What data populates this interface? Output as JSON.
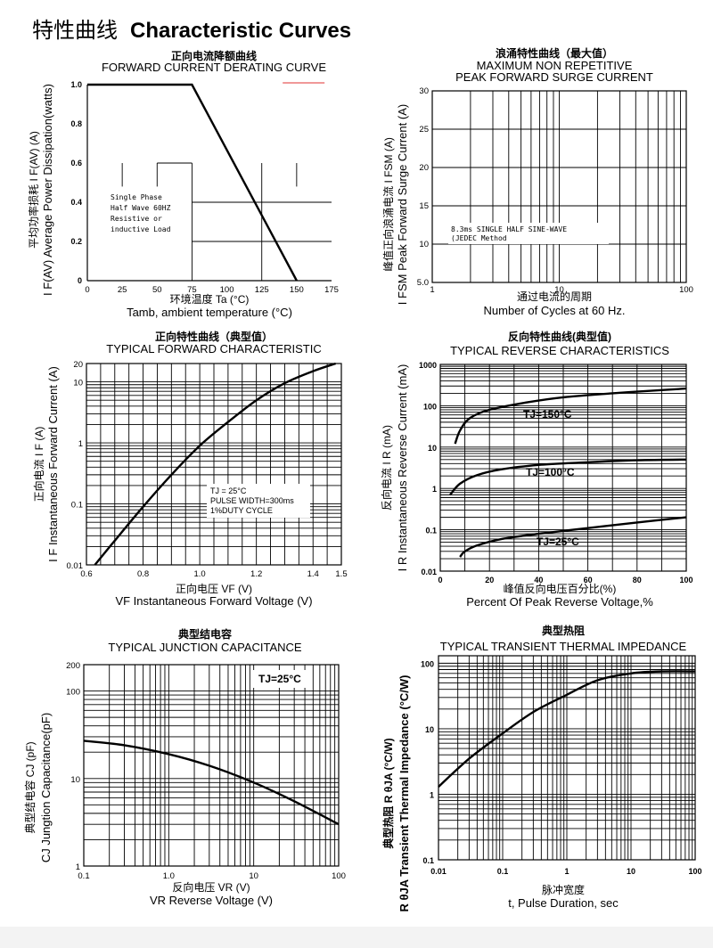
{
  "page": {
    "title_cn": "特性曲线",
    "title_en": "Characteristic Curves"
  },
  "chart_data": [
    {
      "id": "derating",
      "type": "line",
      "title_cn": "正向电流降额曲线",
      "title": "FORWARD CURRENT DERATING CURVE",
      "ylabel": "I F(AV)  Average Power Dissipation(watts)",
      "ylabel_cn": "平均功率损耗  I F(AV)  (A)",
      "xlabel_cn": "环境温度  Ta (°C)",
      "xlabel": "Tamb, ambient temperature (°C)",
      "x_ticks": [
        "0",
        "25",
        "50",
        "75",
        "100",
        "125",
        "150",
        "175"
      ],
      "y_ticks": [
        "0",
        "0.2",
        "0.4",
        "0.6",
        "0.8",
        "1.0"
      ],
      "xlim": [
        0,
        175
      ],
      "ylim": [
        0,
        1.0
      ],
      "series": [
        {
          "name": "derating",
          "x": [
            0,
            75,
            150
          ],
          "y": [
            1.0,
            1.0,
            0
          ]
        }
      ],
      "annotation": [
        "Single Phase",
        "Half Wave 60HZ",
        "Resistive or",
        "inductive Load"
      ]
    },
    {
      "id": "surge",
      "type": "line",
      "title_cn": "浪涌特性曲线（最大值）",
      "title": "MAXIMUM NON REPETITIVE",
      "title2": "PEAK FORWARD SURGE CURRENT",
      "ylabel": "I FSM  Peak Forward Surge Current (A)",
      "ylabel_cn": "峰值正向浪涌电流  I FSM  (A)",
      "xlabel_cn": "通过电流的周期",
      "xlabel": "Number  of  Cycles at 60 Hz.",
      "x_ticks": [
        "1",
        "10",
        "100"
      ],
      "y_ticks": [
        "5.0",
        "10",
        "15",
        "20",
        "25",
        "30"
      ],
      "xlim": [
        1,
        100
      ],
      "ylim": [
        5,
        30
      ],
      "series": [],
      "annotation": [
        "8.3ms SINGLE HALF SINE-WAVE",
        "(JEDEC Method"
      ]
    },
    {
      "id": "forward",
      "type": "line",
      "title_cn": "正向特性曲线（典型值）",
      "title": "TYPICAL FORWARD CHARACTERISTIC",
      "ylabel": "I F  Instantaneous Forward Current (A)",
      "ylabel_cn": "正向电流   I F  (A)",
      "xlabel_cn": "正向电压   VF (V)",
      "xlabel": "VF  Instantaneous Forward Voltage (V)",
      "x_ticks": [
        "0.6",
        "0.8",
        "1.0",
        "1.2",
        "1.4",
        "1.5"
      ],
      "y_ticks": [
        "0.01",
        "0.1",
        "1",
        "10",
        "20"
      ],
      "xlim": [
        0.6,
        1.5
      ],
      "ylim": [
        0.01,
        20
      ],
      "series": [
        {
          "name": "IF",
          "x": [
            0.63,
            0.7,
            0.8,
            0.9,
            1.0,
            1.1,
            1.2,
            1.3,
            1.4,
            1.48
          ],
          "y": [
            0.01,
            0.025,
            0.09,
            0.3,
            0.9,
            2.2,
            5.0,
            9.5,
            15,
            20
          ]
        }
      ],
      "annotation": [
        "TJ = 25°C",
        "PULSE WIDTH=300ms",
        "1%DUTY CYCLE"
      ]
    },
    {
      "id": "reverse",
      "type": "line",
      "title_cn": "反向特性曲线(典型值)",
      "title": "TYPICAL REVERSE CHARACTERISTICS",
      "ylabel": "I R  Instantaneous Reverse Current (mA)",
      "ylabel_cn": "反向电流  I R  (mA)",
      "xlabel_cn": "峰值反向电压百分比(%)",
      "xlabel": "Percent  Of Peak Reverse Voltage,%",
      "x_ticks": [
        "0",
        "20",
        "40",
        "60",
        "80",
        "100"
      ],
      "y_ticks": [
        "0.01",
        "0.1",
        "1",
        "10",
        "100",
        "1000"
      ],
      "xlim": [
        0,
        100
      ],
      "ylim": [
        0.01,
        1000
      ],
      "series": [
        {
          "name": "TJ=150°C",
          "x": [
            6,
            8,
            12,
            20,
            35,
            50,
            70,
            90,
            100
          ],
          "y": [
            12,
            25,
            50,
            80,
            120,
            160,
            200,
            240,
            260
          ]
        },
        {
          "name": "TJ=100°C",
          "x": [
            4,
            8,
            15,
            25,
            40,
            60,
            80,
            100
          ],
          "y": [
            0.7,
            1.3,
            2.1,
            2.9,
            3.7,
            4.3,
            4.8,
            5.0
          ]
        },
        {
          "name": "TJ=25°C",
          "x": [
            8,
            10,
            15,
            25,
            40,
            60,
            80,
            100
          ],
          "y": [
            0.022,
            0.03,
            0.042,
            0.06,
            0.08,
            0.11,
            0.15,
            0.2
          ]
        }
      ],
      "labels": [
        "TJ=150°C",
        "TJ=100°C",
        "TJ=25°C"
      ]
    },
    {
      "id": "capacitance",
      "type": "line",
      "title_cn": "典型结电容",
      "title": "TYPICAL JUNCTION CAPACITANCE",
      "ylabel": "CJ  Jungtion Capacitance(pF)",
      "ylabel_cn": "典型结电容   CJ  (pF)",
      "xlabel_cn": "反向电压  VR (V)",
      "xlabel": "VR  Reverse Voltage (V)",
      "x_ticks": [
        "0.1",
        "1.0",
        "10",
        "100"
      ],
      "y_ticks": [
        "1",
        "10",
        "100",
        "200"
      ],
      "xlim": [
        0.1,
        100
      ],
      "ylim": [
        1,
        200
      ],
      "series": [
        {
          "name": "CJ",
          "x": [
            0.1,
            0.3,
            1,
            3,
            10,
            30,
            100
          ],
          "y": [
            27,
            24,
            19,
            14,
            9,
            5.5,
            3
          ]
        }
      ],
      "annotation": [
        "TJ=25°C"
      ]
    },
    {
      "id": "thermal",
      "type": "line",
      "title_cn": "典型热阻",
      "title": "TYPICAL TRANSIENT THERMAL IMPEDANCE",
      "ylabel": "R θJA  Transient Thermal Impedance (°C/W)",
      "ylabel_cn": "典型热阻  R θJA  (°C/W)",
      "xlabel_cn": "脉冲宽度",
      "xlabel": "t, Pulse Duration, sec",
      "x_ticks": [
        "0.01",
        "0.1",
        "1",
        "10",
        "100"
      ],
      "y_ticks": [
        "0.1",
        "1",
        "10",
        "100"
      ],
      "xlim": [
        0.01,
        100
      ],
      "ylim": [
        0.1,
        130
      ],
      "series": [
        {
          "name": "Rth",
          "x": [
            0.01,
            0.03,
            0.1,
            0.3,
            1,
            3,
            10,
            30,
            100
          ],
          "y": [
            1.3,
            3.5,
            8.5,
            18,
            33,
            55,
            70,
            75,
            75
          ]
        }
      ]
    }
  ]
}
